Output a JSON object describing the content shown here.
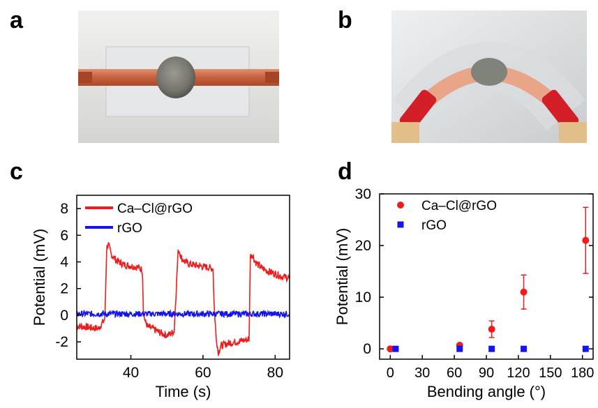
{
  "panels": {
    "a": "a",
    "b": "b",
    "c": "c",
    "d": "d"
  },
  "chart_data": [
    {
      "type": "line",
      "panel": "c",
      "xlabel": "Time (s)",
      "ylabel": "Potential (mV)",
      "xlim": [
        25,
        84
      ],
      "ylim": [
        -3.3,
        9
      ],
      "xticks": [
        40,
        60,
        80
      ],
      "yticks": [
        -2,
        0,
        2,
        4,
        6,
        8
      ],
      "legend": "top-left",
      "series": [
        {
          "name": "Ca–Cl@rGO",
          "color": "#ee1c1c",
          "x": [
            25,
            28,
            31,
            32.8,
            33.3,
            33.8,
            34.5,
            36,
            38,
            40,
            42,
            43.2,
            43.5,
            44,
            44.8,
            46,
            48,
            50,
            51,
            52,
            53.1,
            53.4,
            54,
            55,
            57,
            59,
            61,
            62.8,
            63.1,
            63.6,
            64.2,
            65,
            67,
            69,
            71,
            72.8,
            73.1,
            73.6,
            74.5,
            76,
            78,
            80,
            82,
            84
          ],
          "y": [
            -0.8,
            -0.9,
            -1.0,
            -0.3,
            5.1,
            5.3,
            4.6,
            4.1,
            3.8,
            3.7,
            3.6,
            3.4,
            0.2,
            -0.5,
            -0.9,
            -1.0,
            -1.3,
            -1.5,
            -1.4,
            -1.2,
            4.8,
            4.9,
            4.3,
            4.0,
            3.8,
            3.7,
            3.6,
            3.5,
            0.6,
            -1.5,
            -2.8,
            -2.3,
            -2.1,
            -2.0,
            -1.9,
            -1.8,
            4.4,
            4.6,
            4.0,
            3.6,
            3.3,
            3.1,
            2.9,
            2.8
          ]
        },
        {
          "name": "rGO",
          "color": "#1414ee",
          "x": [
            25,
            84
          ],
          "y": [
            0.1,
            0.1
          ]
        }
      ]
    },
    {
      "type": "scatter",
      "panel": "d",
      "xlabel": "Bending angle (°)",
      "ylabel": "Potential (mV)",
      "xlim": [
        -10,
        190
      ],
      "ylim": [
        -2,
        30
      ],
      "xticks": [
        0,
        30,
        60,
        90,
        120,
        150,
        180
      ],
      "yticks": [
        0,
        10,
        20,
        30
      ],
      "legend": "top-left",
      "series": [
        {
          "name": "Ca–Cl@rGO",
          "color": "#ee1c1c",
          "marker": "circle",
          "x": [
            0,
            65,
            95,
            125,
            183
          ],
          "y": [
            0,
            0.7,
            3.8,
            11.0,
            21.0
          ],
          "err": [
            0,
            0,
            1.6,
            3.3,
            6.4
          ]
        },
        {
          "name": "rGO",
          "color": "#1414ee",
          "marker": "square",
          "x": [
            5,
            65,
            95,
            125,
            183
          ],
          "y": [
            0,
            0,
            0,
            0,
            0
          ],
          "err": [
            0,
            0,
            0,
            0,
            0
          ]
        }
      ]
    }
  ]
}
